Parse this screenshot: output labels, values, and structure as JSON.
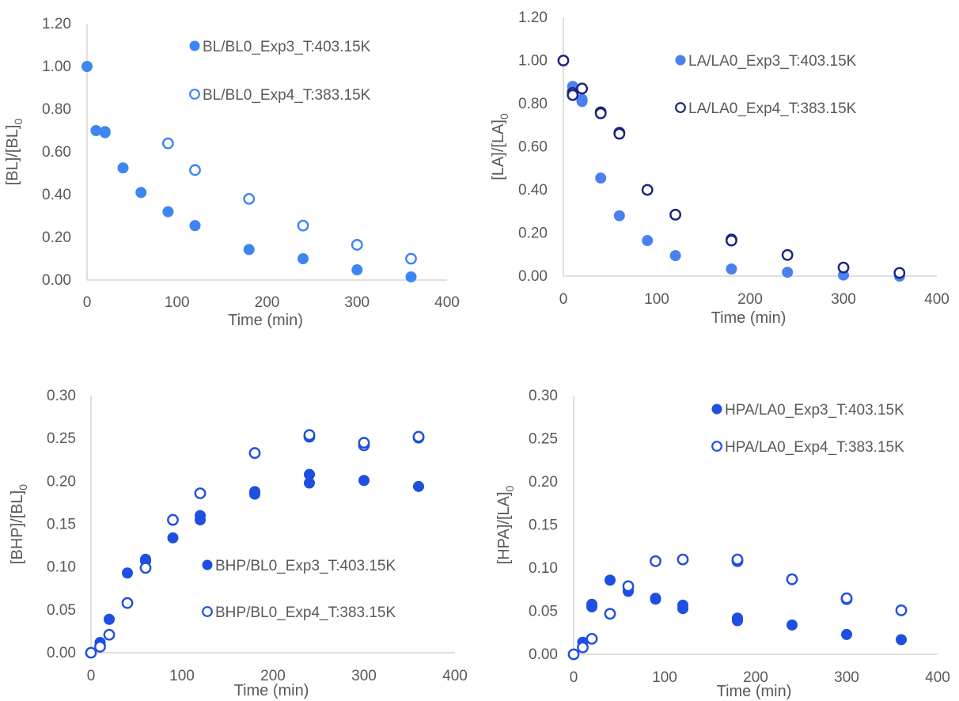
{
  "chart_data": [
    {
      "type": "scatter",
      "xlabel": "Time (min)",
      "ylabel": {
        "main": "[BL]/[BL]",
        "sub": "0"
      },
      "xlim": [
        0,
        400
      ],
      "ylim": [
        0,
        1.2
      ],
      "x_ticks": [
        "0",
        "100",
        "200",
        "300",
        "400"
      ],
      "y_ticks": [
        "0.00",
        "0.20",
        "0.40",
        "0.60",
        "0.80",
        "1.00",
        "1.20"
      ],
      "legend": "top-right",
      "series": [
        {
          "name": "BL/BL0_Exp3_T:403.15K",
          "marker": "filled",
          "color": "#3d85f0",
          "x": [
            0,
            10,
            20,
            20,
            40,
            60,
            90,
            120,
            180,
            240,
            300,
            360
          ],
          "y": [
            1.0,
            0.7,
            0.69,
            0.695,
            0.525,
            0.41,
            0.32,
            0.255,
            0.143,
            0.1,
            0.048,
            0.015
          ]
        },
        {
          "name": "BL/BL0_Exp4_T:383.15K",
          "marker": "open",
          "color": "#3d85f0",
          "x": [
            90,
            120,
            180,
            240,
            300,
            360
          ],
          "y": [
            0.64,
            0.515,
            0.38,
            0.255,
            0.165,
            0.1
          ]
        }
      ]
    },
    {
      "type": "scatter",
      "xlabel": "Time (min)",
      "ylabel": {
        "main": "[LA]/[LA]",
        "sub": "0"
      },
      "xlim": [
        0,
        400
      ],
      "ylim": [
        0,
        1.2
      ],
      "x_ticks": [
        "0",
        "100",
        "200",
        "300",
        "400"
      ],
      "y_ticks": [
        "0.00",
        "0.20",
        "0.40",
        "0.60",
        "0.80",
        "1.00",
        "1.20"
      ],
      "legend": "top-right",
      "series": [
        {
          "name": "LA/LA0_Exp3_T:403.15K",
          "marker": "filled",
          "color": "#4a80f0",
          "x": [
            0,
            10,
            10,
            20,
            20,
            40,
            60,
            90,
            120,
            180,
            240,
            300,
            360
          ],
          "y": [
            1.0,
            0.88,
            0.86,
            0.82,
            0.81,
            0.455,
            0.28,
            0.165,
            0.095,
            0.033,
            0.018,
            0.005,
            0.0
          ]
        },
        {
          "name": "LA/LA0_Exp4_T:383.15K",
          "marker": "open",
          "color": "#1a237e",
          "x": [
            0,
            10,
            10,
            20,
            20,
            40,
            40,
            60,
            60,
            90,
            120,
            180,
            180,
            240,
            300,
            360
          ],
          "y": [
            1.0,
            0.85,
            0.84,
            0.87,
            0.87,
            0.76,
            0.755,
            0.665,
            0.66,
            0.4,
            0.285,
            0.17,
            0.165,
            0.098,
            0.04,
            0.015
          ]
        }
      ]
    },
    {
      "type": "scatter",
      "xlabel": "Time (min)",
      "ylabel": {
        "main": "[BHP]/[BL]",
        "sub": "0"
      },
      "xlim": [
        0,
        400
      ],
      "ylim": [
        0,
        0.3
      ],
      "x_ticks": [
        "0",
        "100",
        "200",
        "300",
        "400"
      ],
      "y_ticks": [
        "0.00",
        "0.05",
        "0.10",
        "0.15",
        "0.20",
        "0.25",
        "0.30"
      ],
      "legend": "center-right",
      "series": [
        {
          "name": "BHP/BL0_Exp3_T:403.15K",
          "marker": "filled",
          "color": "#1f4fe0",
          "x": [
            0,
            10,
            10,
            20,
            40,
            60,
            60,
            90,
            120,
            120,
            180,
            180,
            240,
            240,
            300,
            360
          ],
          "y": [
            0.0,
            0.009,
            0.012,
            0.039,
            0.093,
            0.107,
            0.109,
            0.134,
            0.155,
            0.16,
            0.185,
            0.188,
            0.198,
            0.208,
            0.201,
            0.194
          ]
        },
        {
          "name": "BHP/BL0_Exp4_T:383.15K",
          "marker": "open",
          "color": "#1f4fe0",
          "x": [
            0,
            10,
            20,
            40,
            60,
            90,
            120,
            180,
            240,
            240,
            300,
            300,
            360,
            360
          ],
          "y": [
            0.0,
            0.007,
            0.021,
            0.058,
            0.099,
            0.155,
            0.186,
            0.233,
            0.252,
            0.254,
            0.242,
            0.245,
            0.251,
            0.252
          ]
        }
      ]
    },
    {
      "type": "scatter",
      "xlabel": "Time (min)",
      "ylabel": {
        "main": "[HPA]/[LA]",
        "sub": "0"
      },
      "xlim": [
        0,
        400
      ],
      "ylim": [
        0,
        0.3
      ],
      "x_ticks": [
        "0",
        "100",
        "200",
        "300",
        "400"
      ],
      "y_ticks": [
        "0.00",
        "0.05",
        "0.10",
        "0.15",
        "0.20",
        "0.25",
        "0.30"
      ],
      "legend": "top-right",
      "series": [
        {
          "name": "HPA/LA0_Exp3_T:403.15K",
          "marker": "filled",
          "color": "#1f4fe0",
          "x": [
            0,
            10,
            20,
            20,
            40,
            60,
            60,
            90,
            90,
            120,
            120,
            180,
            180,
            240,
            300,
            360
          ],
          "y": [
            0.0,
            0.014,
            0.055,
            0.058,
            0.086,
            0.073,
            0.076,
            0.064,
            0.065,
            0.053,
            0.057,
            0.039,
            0.042,
            0.034,
            0.023,
            0.017
          ]
        },
        {
          "name": "HPA/LA0_Exp4_T:383.15K",
          "marker": "open",
          "color": "#1f4fe0",
          "x": [
            0,
            10,
            20,
            40,
            60,
            90,
            120,
            180,
            180,
            240,
            300,
            300,
            360
          ],
          "y": [
            0.0,
            0.008,
            0.018,
            0.047,
            0.079,
            0.108,
            0.11,
            0.108,
            0.11,
            0.087,
            0.064,
            0.065,
            0.051
          ]
        }
      ]
    }
  ]
}
